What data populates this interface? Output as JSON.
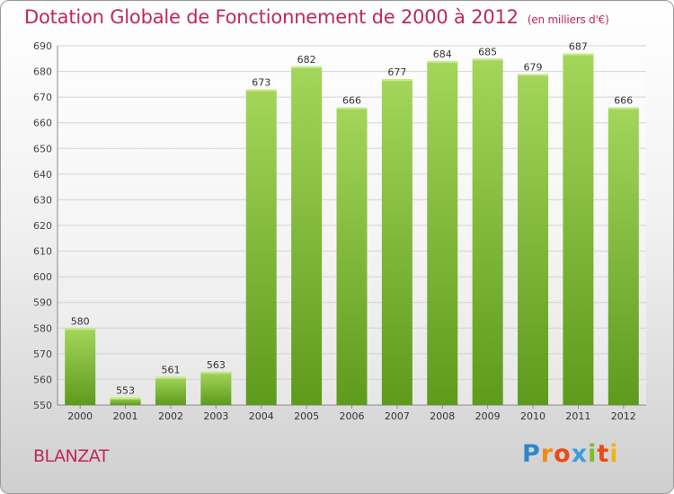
{
  "title": "Dotation Globale de Fonctionnement de 2000 à 2012",
  "subtitle": "(en milliers d'€)",
  "commune": "BLANZAT",
  "logo": {
    "letters": [
      "P",
      "r",
      "o",
      "x",
      "i",
      "t",
      "i"
    ],
    "colors": [
      "#2f86c8",
      "#f08a1c",
      "#e84b1a",
      "#3c9fdb",
      "#7bbf2a",
      "#e84b1a",
      "#f0b41c"
    ]
  },
  "colors": {
    "bar": "#7ab52e",
    "bar_light": "#a3d65a",
    "title": "#c0285a"
  },
  "chart_data": {
    "type": "bar",
    "categories": [
      "2000",
      "2001",
      "2002",
      "2003",
      "2004",
      "2005",
      "2006",
      "2007",
      "2008",
      "2009",
      "2010",
      "2011",
      "2012"
    ],
    "values": [
      580,
      553,
      561,
      563,
      673,
      682,
      666,
      677,
      684,
      685,
      679,
      687,
      666
    ],
    "ylim": [
      550,
      690
    ],
    "yticks": [
      550,
      560,
      570,
      580,
      590,
      600,
      610,
      620,
      630,
      640,
      650,
      660,
      670,
      680,
      690
    ],
    "grid": true,
    "data_labels": true
  }
}
